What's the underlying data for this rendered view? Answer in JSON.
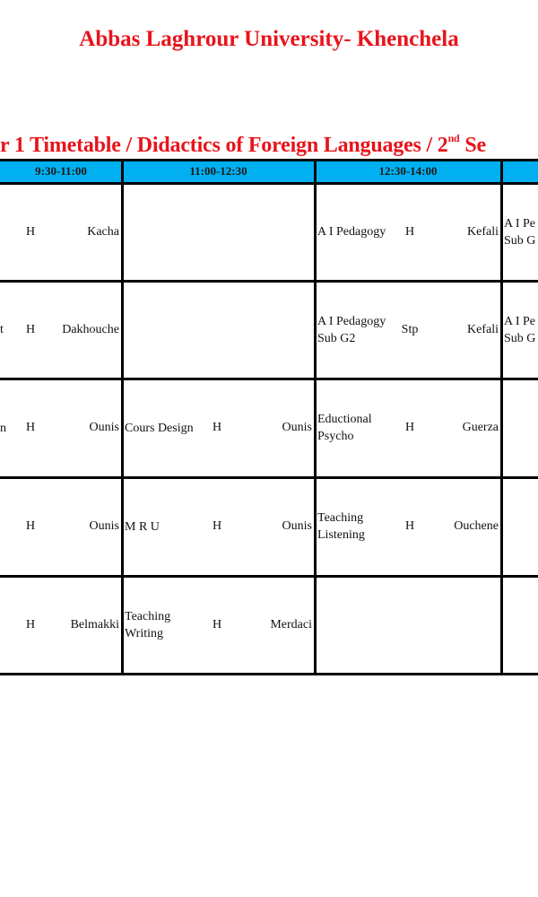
{
  "title": "Abbas Laghrour University- Khenchela",
  "subtitle": {
    "text": "r 1 Timetable / Didactics of Foreign Languages / 2",
    "sup": "nd",
    "tail": " Se"
  },
  "header": [
    "9:30-11:00",
    "11:00-12:30",
    "12:30-14:00",
    ""
  ],
  "header_color": "#00b0f0",
  "title_color": "#e8141b",
  "rows": [
    {
      "cells": [
        {
          "subject": "",
          "type": "H",
          "teacher": "Kacha"
        },
        {
          "subject": "",
          "type": "",
          "teacher": ""
        },
        {
          "subject": "A I Pedagogy",
          "type": "H",
          "teacher": "Kefali"
        },
        {
          "subject": "A I Pe Sub G",
          "type": "",
          "teacher": ""
        }
      ]
    },
    {
      "cells": [
        {
          "subject": "t",
          "type": "H",
          "teacher": "Dakhouche"
        },
        {
          "subject": "",
          "type": "",
          "teacher": ""
        },
        {
          "subject": "A I Pedagogy Sub G2",
          "type": "Stp",
          "teacher": "Kefali"
        },
        {
          "subject": "A I Pe Sub G",
          "type": "",
          "teacher": ""
        }
      ]
    },
    {
      "cells": [
        {
          "subject": "n",
          "type": "H",
          "teacher": "Ounis"
        },
        {
          "subject": "Cours Design",
          "type": "H",
          "teacher": "Ounis"
        },
        {
          "subject": "Eductional Psycho",
          "type": "H",
          "teacher": "Guerza"
        },
        {
          "subject": "",
          "type": "",
          "teacher": ""
        }
      ]
    },
    {
      "cells": [
        {
          "subject": "",
          "type": "H",
          "teacher": "Ounis"
        },
        {
          "subject": "M R U",
          "type": "H",
          "teacher": "Ounis"
        },
        {
          "subject": "Teaching Listening",
          "type": "H",
          "teacher": "Ouchene"
        },
        {
          "subject": "",
          "type": "",
          "teacher": ""
        }
      ]
    },
    {
      "cells": [
        {
          "subject": "",
          "type": "H",
          "teacher": "Belmakki"
        },
        {
          "subject": "Teaching Writing",
          "type": "H",
          "teacher": "Merdaci"
        },
        {
          "subject": "",
          "type": "",
          "teacher": ""
        },
        {
          "subject": "",
          "type": "",
          "teacher": ""
        }
      ]
    }
  ]
}
